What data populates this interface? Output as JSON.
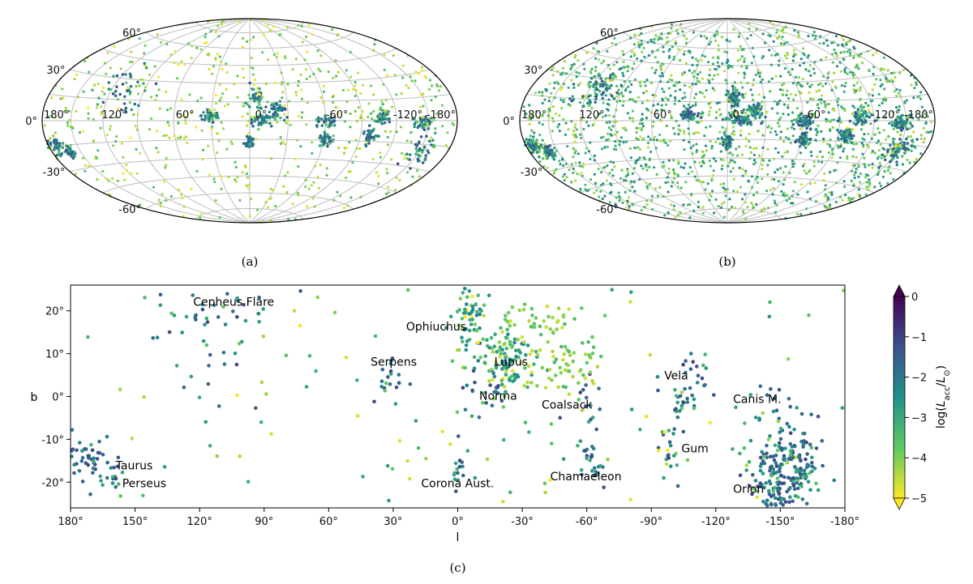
{
  "chart_data": [
    {
      "id": "a",
      "type": "scatter",
      "projection": "aitoff/hammer (galactic)",
      "caption": "(a)",
      "lon_ticks": [
        "180°",
        "120°",
        "60°",
        "0°",
        "-60°",
        "-120°",
        "-180°"
      ],
      "lon_values": [
        180,
        120,
        60,
        0,
        -60,
        -120,
        -180
      ],
      "lat_ticks": [
        "60°",
        "30°",
        "0°",
        "-30°",
        "-60°"
      ],
      "lat_values": [
        60,
        30,
        0,
        -30,
        -60
      ],
      "density": "sparse",
      "colorscale": "log(L_acc/L_sun)"
    },
    {
      "id": "b",
      "type": "scatter",
      "projection": "aitoff/hammer (galactic)",
      "caption": "(b)",
      "lon_ticks": [
        "180°",
        "120°",
        "60°",
        "0°",
        "-60°",
        "-120°",
        "-180°"
      ],
      "lon_values": [
        180,
        120,
        60,
        0,
        -60,
        -120,
        -180
      ],
      "lat_ticks": [
        "60°",
        "30°",
        "0°",
        "-30°",
        "-60°"
      ],
      "lat_values": [
        60,
        30,
        0,
        -30,
        -60
      ],
      "density": "dense",
      "colorscale": "log(L_acc/L_sun)"
    },
    {
      "id": "c",
      "type": "scatter",
      "caption": "(c)",
      "xlabel": "l",
      "ylabel": "b",
      "xlim": [
        180,
        -180
      ],
      "ylim": [
        -26,
        26
      ],
      "x_ticks": [
        "180°",
        "150°",
        "120°",
        "90°",
        "60°",
        "30°",
        "0°",
        "-30°",
        "-60°",
        "-90°",
        "-120°",
        "-150°",
        "-180°"
      ],
      "x_tick_values": [
        180,
        150,
        120,
        90,
        60,
        30,
        0,
        -30,
        -60,
        -90,
        -120,
        -150,
        -180
      ],
      "y_ticks": [
        "20°",
        "10°",
        "0°",
        "-10°",
        "-20°"
      ],
      "y_tick_values": [
        20,
        10,
        0,
        -10,
        -20
      ],
      "regions": [
        {
          "name": "Cepheus Flare",
          "l": 110,
          "b": 22,
          "spread_l": 15,
          "spread_b": 9
        },
        {
          "name": "Ophiuchus",
          "l": -6,
          "b": 18,
          "spread_l": 4,
          "spread_b": 5
        },
        {
          "name": "Serpens",
          "l": 31,
          "b": 4,
          "spread_l": 4,
          "spread_b": 3
        },
        {
          "name": "Lupus",
          "l": -22,
          "b": 8,
          "spread_l": 5,
          "spread_b": 4
        },
        {
          "name": "Norma",
          "l": -10,
          "b": 0.5,
          "spread_l": 6,
          "spread_b": 3
        },
        {
          "name": "Coalsack",
          "l": -60,
          "b": -1,
          "spread_l": 5,
          "spread_b": 3
        },
        {
          "name": "Vela",
          "l": -108,
          "b": 2,
          "spread_l": 5,
          "spread_b": 4
        },
        {
          "name": "Canis M.",
          "l": -145,
          "b": -1,
          "spread_l": 6,
          "spread_b": 3
        },
        {
          "name": "Gum",
          "l": -98,
          "b": -11,
          "spread_l": 4,
          "spread_b": 4
        },
        {
          "name": "Taurus",
          "l": 172,
          "b": -15,
          "spread_l": 5,
          "spread_b": 3
        },
        {
          "name": "Perseus",
          "l": 160,
          "b": -20,
          "spread_l": 3,
          "spread_b": 2
        },
        {
          "name": "Corona Aust.",
          "l": 0,
          "b": -17,
          "spread_l": 2,
          "spread_b": 3
        },
        {
          "name": "Chamaeleon",
          "l": -62,
          "b": -15,
          "spread_l": 3,
          "spread_b": 3
        },
        {
          "name": "Orion",
          "l": -152,
          "b": -18,
          "spread_l": 8,
          "spread_b": 6
        }
      ],
      "colorbar": {
        "label": "log(L_acc/L_⊙)",
        "label_prefix": "log(",
        "label_L": "L",
        "label_acc": "acc",
        "label_mid": "/",
        "label_sun": "⊙",
        "label_suffix": ")",
        "min": -5,
        "max": 0,
        "ticks": [
          "0",
          "−1",
          "−2",
          "−3",
          "−4",
          "−5"
        ],
        "tick_values": [
          0,
          -1,
          -2,
          -3,
          -4,
          -5
        ],
        "colors": [
          "#440154",
          "#3b528b",
          "#21918c",
          "#5ec962",
          "#fde725"
        ]
      }
    }
  ]
}
